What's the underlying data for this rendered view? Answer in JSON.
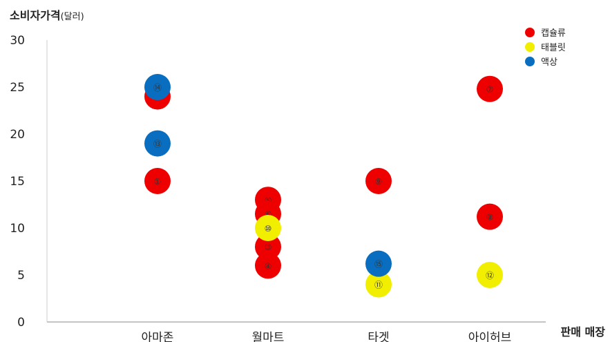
{
  "chart_data": {
    "type": "scatter",
    "ylabel": "소비자가격",
    "ylabel_unit": "(달러)",
    "xlabel": "판매 매장",
    "ylim": [
      0,
      30
    ],
    "yticks": [
      "0",
      "5",
      "10",
      "15",
      "20",
      "25",
      "30"
    ],
    "categories": [
      "아마존",
      "월마트",
      "타겟",
      "아이허브"
    ],
    "legend_position": "top-right",
    "series": [
      {
        "name": "캡슐류",
        "color": "#ee0000",
        "points": [
          {
            "category": "아마존",
            "y": 15,
            "label": "①"
          },
          {
            "category": "아마존",
            "y": 24,
            "label": "②"
          },
          {
            "category": "월마트",
            "y": 8,
            "label": "③"
          },
          {
            "category": "월마트",
            "y": 6,
            "label": "④"
          },
          {
            "category": "월마트",
            "y": 13,
            "label": "⑤"
          },
          {
            "category": "월마트",
            "y": 11.5,
            "label": "⑥"
          },
          {
            "category": "아이허브",
            "y": 24.8,
            "label": "⑦"
          },
          {
            "category": "아이허브",
            "y": 11.2,
            "label": "⑧"
          },
          {
            "category": "타겟",
            "y": 15,
            "label": "⑨"
          }
        ]
      },
      {
        "name": "태블릿",
        "color": "#f2ee00",
        "points": [
          {
            "category": "월마트",
            "y": 10,
            "label": "⑩"
          },
          {
            "category": "타겟",
            "y": 4,
            "label": "⑪"
          },
          {
            "category": "아이허브",
            "y": 5,
            "label": "⑫"
          }
        ]
      },
      {
        "name": "액상",
        "color": "#0a6ec0",
        "points": [
          {
            "category": "아마존",
            "y": 19,
            "label": "⑬"
          },
          {
            "category": "아마존",
            "y": 25,
            "label": "⑭"
          },
          {
            "category": "타겟",
            "y": 6.2,
            "label": "⑮"
          }
        ]
      }
    ]
  }
}
